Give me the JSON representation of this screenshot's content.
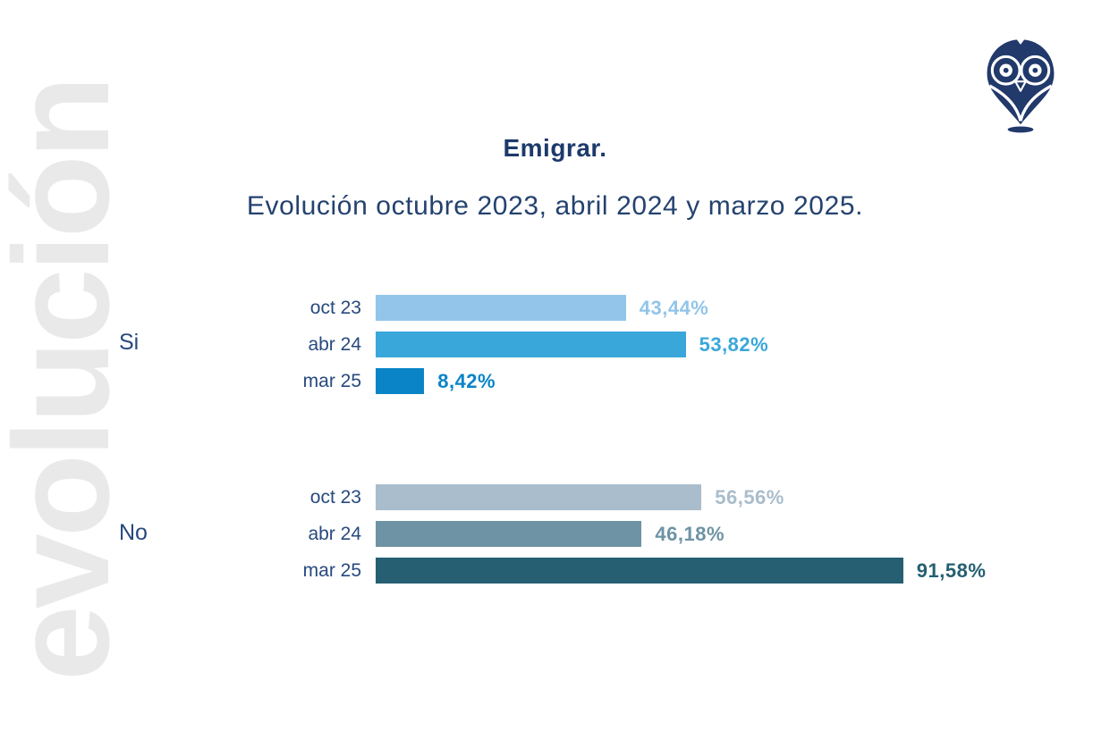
{
  "watermark": {
    "text": "evolución",
    "color": "#e9e9e9"
  },
  "logo": {
    "name": "owl-logo",
    "color": "#21396b"
  },
  "header": {
    "title": "Emigrar.",
    "subtitle": "Evolución octubre 2023, abril 2024 y marzo 2025."
  },
  "chart_data": {
    "type": "bar",
    "orientation": "horizontal",
    "title": "Emigrar.",
    "subtitle": "Evolución octubre 2023, abril 2024 y marzo 2025.",
    "unit": "%",
    "xlim": [
      0,
      95
    ],
    "categories": [
      "oct 23",
      "abr 24",
      "mar 25"
    ],
    "groups": [
      {
        "label": "Si",
        "rows": [
          {
            "period": "oct 23",
            "value": 43.44,
            "display": "43,44%",
            "color": "#92c5e9"
          },
          {
            "period": "abr 24",
            "value": 53.82,
            "display": "53,82%",
            "color": "#3aa7da"
          },
          {
            "period": "mar 25",
            "value": 8.42,
            "display": "8,42%",
            "color": "#0a84c7"
          }
        ]
      },
      {
        "label": "No",
        "rows": [
          {
            "period": "oct 23",
            "value": 56.56,
            "display": "56,56%",
            "color": "#a9bdcc"
          },
          {
            "period": "abr 24",
            "value": 46.18,
            "display": "46,18%",
            "color": "#6d93a4"
          },
          {
            "period": "mar 25",
            "value": 91.58,
            "display": "91,58%",
            "color": "#265f72"
          }
        ]
      }
    ]
  }
}
